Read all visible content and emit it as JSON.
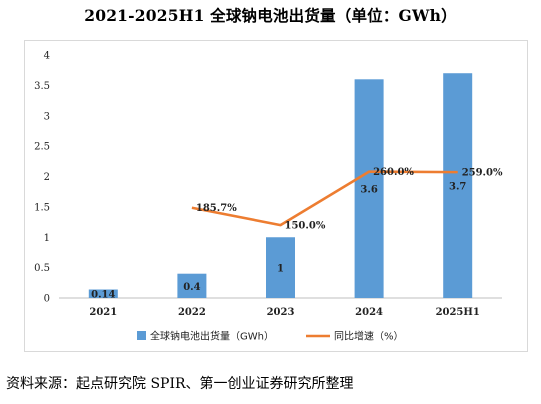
{
  "page": {
    "title": "2021-2025H1 全球钠电池出货量（单位：GWh）",
    "source": "资料来源：起点研究院 SPIR、第一创业证券研究所整理"
  },
  "chart_data": {
    "type": "bar",
    "categories": [
      "2021",
      "2022",
      "2023",
      "2024",
      "2025H1"
    ],
    "series": [
      {
        "name": "全球钠电池出货量（GWh）",
        "kind": "bar",
        "color": "#5B9BD5",
        "values": [
          0.14,
          0.4,
          1,
          3.6,
          3.7
        ],
        "labels": [
          "0.14",
          "0.4",
          "1",
          "3.6",
          "3.7"
        ]
      },
      {
        "name": "同比增速（%）",
        "kind": "line",
        "color": "#ED7D31",
        "values": [
          null,
          185.7,
          150.0,
          260.0,
          259.0
        ],
        "labels": [
          "",
          "185.7%",
          "150.0%",
          "260.0%",
          "259.0%"
        ]
      }
    ],
    "y_ticks": [
      "0",
      "0.5",
      "1",
      "1.5",
      "2",
      "2.5",
      "3",
      "3.5",
      "4"
    ],
    "ylim": [
      0,
      4
    ],
    "line_axis_hidden": true,
    "grid": false,
    "legend": "bottom-center"
  }
}
